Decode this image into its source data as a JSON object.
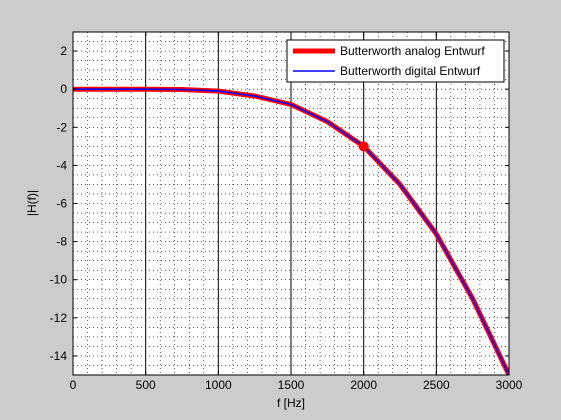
{
  "chart_data": {
    "type": "line",
    "title": "",
    "xlabel": "f [Hz]",
    "ylabel": "|H(f)|",
    "xlim": [
      0,
      3000
    ],
    "ylim": [
      -15,
      3
    ],
    "xticks": [
      0,
      500,
      1000,
      1500,
      2000,
      2500,
      3000
    ],
    "yticks": [
      2,
      0,
      -2,
      -4,
      -6,
      -8,
      -10,
      -12,
      -14
    ],
    "grid": "major solid vertical, minor dotted",
    "legend_position": "top-right",
    "series": [
      {
        "name": "Butterworth analog Entwurf",
        "color": "#ff0000",
        "style": "thick",
        "x": [
          0,
          250,
          500,
          750,
          1000,
          1250,
          1500,
          1750,
          2000,
          2250,
          2500,
          2750,
          3000
        ],
        "y": [
          0,
          0,
          0,
          -0.02,
          -0.1,
          -0.36,
          -0.8,
          -1.7,
          -3.0,
          -5.0,
          -7.6,
          -11.0,
          -15.0
        ]
      },
      {
        "name": "Butterworth digital Entwurf",
        "color": "#0000ff",
        "style": "thin",
        "x": [
          0,
          250,
          500,
          750,
          1000,
          1250,
          1500,
          1750,
          2000,
          2250,
          2500,
          2750,
          3000
        ],
        "y": [
          0,
          0,
          0,
          -0.02,
          -0.1,
          -0.36,
          -0.8,
          -1.7,
          -3.0,
          -5.0,
          -7.6,
          -11.0,
          -15.0
        ]
      }
    ],
    "marker": {
      "x": 2000,
      "y": -3.0,
      "color": "#ff0000"
    }
  }
}
